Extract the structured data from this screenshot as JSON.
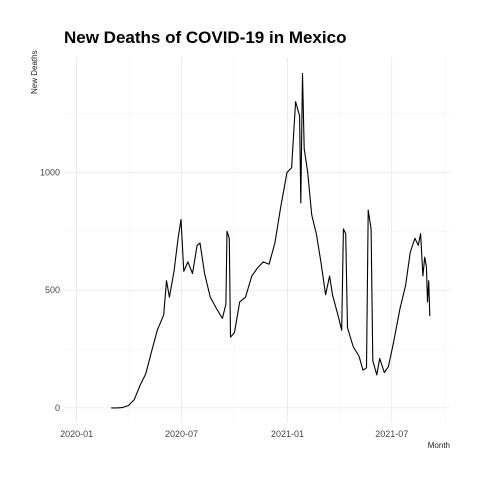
{
  "chart_data": {
    "type": "line",
    "title": "New Deaths of COVID-19 in Mexico",
    "xlabel": "Month",
    "ylabel": "New Deaths",
    "x_range": [
      "2019-12-10",
      "2021-10-10"
    ],
    "ylim": [
      -60,
      1490
    ],
    "x_ticks": [
      {
        "date": "2020-01-01",
        "label": "2020-01"
      },
      {
        "date": "2020-07-01",
        "label": "2020-07"
      },
      {
        "date": "2021-01-01",
        "label": "2021-01"
      },
      {
        "date": "2021-07-01",
        "label": "2021-07"
      }
    ],
    "x_minor_ticks": [
      "2020-04-01",
      "2020-10-01",
      "2021-04-01",
      "2021-10-01"
    ],
    "y_ticks": [
      0,
      500,
      1000
    ],
    "y_minor_ticks": [
      250,
      750,
      1250
    ],
    "grid": true,
    "series": [
      {
        "color": "#000000",
        "points": [
          {
            "x": "2020-03-01",
            "y": 0
          },
          {
            "x": "2020-03-10",
            "y": 0
          },
          {
            "x": "2020-03-20",
            "y": 1
          },
          {
            "x": "2020-03-31",
            "y": 10
          },
          {
            "x": "2020-04-10",
            "y": 35
          },
          {
            "x": "2020-04-20",
            "y": 95
          },
          {
            "x": "2020-04-30",
            "y": 145
          },
          {
            "x": "2020-05-10",
            "y": 240
          },
          {
            "x": "2020-05-20",
            "y": 330
          },
          {
            "x": "2020-05-31",
            "y": 395
          },
          {
            "x": "2020-06-05",
            "y": 540
          },
          {
            "x": "2020-06-10",
            "y": 470
          },
          {
            "x": "2020-06-18",
            "y": 580
          },
          {
            "x": "2020-06-25",
            "y": 720
          },
          {
            "x": "2020-06-30",
            "y": 800
          },
          {
            "x": "2020-07-05",
            "y": 580
          },
          {
            "x": "2020-07-12",
            "y": 620
          },
          {
            "x": "2020-07-20",
            "y": 570
          },
          {
            "x": "2020-07-28",
            "y": 690
          },
          {
            "x": "2020-08-02",
            "y": 700
          },
          {
            "x": "2020-08-10",
            "y": 570
          },
          {
            "x": "2020-08-20",
            "y": 470
          },
          {
            "x": "2020-08-31",
            "y": 420
          },
          {
            "x": "2020-09-10",
            "y": 380
          },
          {
            "x": "2020-09-16",
            "y": 440
          },
          {
            "x": "2020-09-18",
            "y": 750
          },
          {
            "x": "2020-09-22",
            "y": 720
          },
          {
            "x": "2020-09-24",
            "y": 300
          },
          {
            "x": "2020-10-01",
            "y": 320
          },
          {
            "x": "2020-10-10",
            "y": 450
          },
          {
            "x": "2020-10-20",
            "y": 470
          },
          {
            "x": "2020-10-31",
            "y": 560
          },
          {
            "x": "2020-11-10",
            "y": 595
          },
          {
            "x": "2020-11-20",
            "y": 620
          },
          {
            "x": "2020-11-30",
            "y": 610
          },
          {
            "x": "2020-12-10",
            "y": 700
          },
          {
            "x": "2020-12-20",
            "y": 850
          },
          {
            "x": "2020-12-31",
            "y": 1000
          },
          {
            "x": "2021-01-08",
            "y": 1020
          },
          {
            "x": "2021-01-15",
            "y": 1300
          },
          {
            "x": "2021-01-22",
            "y": 1240
          },
          {
            "x": "2021-01-24",
            "y": 870
          },
          {
            "x": "2021-01-27",
            "y": 1420
          },
          {
            "x": "2021-01-30",
            "y": 1100
          },
          {
            "x": "2021-02-05",
            "y": 1000
          },
          {
            "x": "2021-02-12",
            "y": 820
          },
          {
            "x": "2021-02-20",
            "y": 740
          },
          {
            "x": "2021-02-28",
            "y": 620
          },
          {
            "x": "2021-03-08",
            "y": 480
          },
          {
            "x": "2021-03-15",
            "y": 560
          },
          {
            "x": "2021-03-20",
            "y": 480
          },
          {
            "x": "2021-03-31",
            "y": 380
          },
          {
            "x": "2021-04-05",
            "y": 330
          },
          {
            "x": "2021-04-08",
            "y": 760
          },
          {
            "x": "2021-04-12",
            "y": 740
          },
          {
            "x": "2021-04-15",
            "y": 340
          },
          {
            "x": "2021-04-25",
            "y": 260
          },
          {
            "x": "2021-05-05",
            "y": 220
          },
          {
            "x": "2021-05-12",
            "y": 160
          },
          {
            "x": "2021-05-18",
            "y": 170
          },
          {
            "x": "2021-05-21",
            "y": 840
          },
          {
            "x": "2021-05-26",
            "y": 760
          },
          {
            "x": "2021-05-29",
            "y": 200
          },
          {
            "x": "2021-06-05",
            "y": 140
          },
          {
            "x": "2021-06-10",
            "y": 210
          },
          {
            "x": "2021-06-18",
            "y": 150
          },
          {
            "x": "2021-06-25",
            "y": 175
          },
          {
            "x": "2021-07-05",
            "y": 290
          },
          {
            "x": "2021-07-15",
            "y": 420
          },
          {
            "x": "2021-07-25",
            "y": 520
          },
          {
            "x": "2021-08-02",
            "y": 660
          },
          {
            "x": "2021-08-10",
            "y": 720
          },
          {
            "x": "2021-08-16",
            "y": 690
          },
          {
            "x": "2021-08-20",
            "y": 740
          },
          {
            "x": "2021-08-24",
            "y": 560
          },
          {
            "x": "2021-08-27",
            "y": 640
          },
          {
            "x": "2021-08-30",
            "y": 600
          },
          {
            "x": "2021-09-01",
            "y": 450
          },
          {
            "x": "2021-09-03",
            "y": 540
          },
          {
            "x": "2021-09-05",
            "y": 390
          }
        ]
      }
    ]
  }
}
